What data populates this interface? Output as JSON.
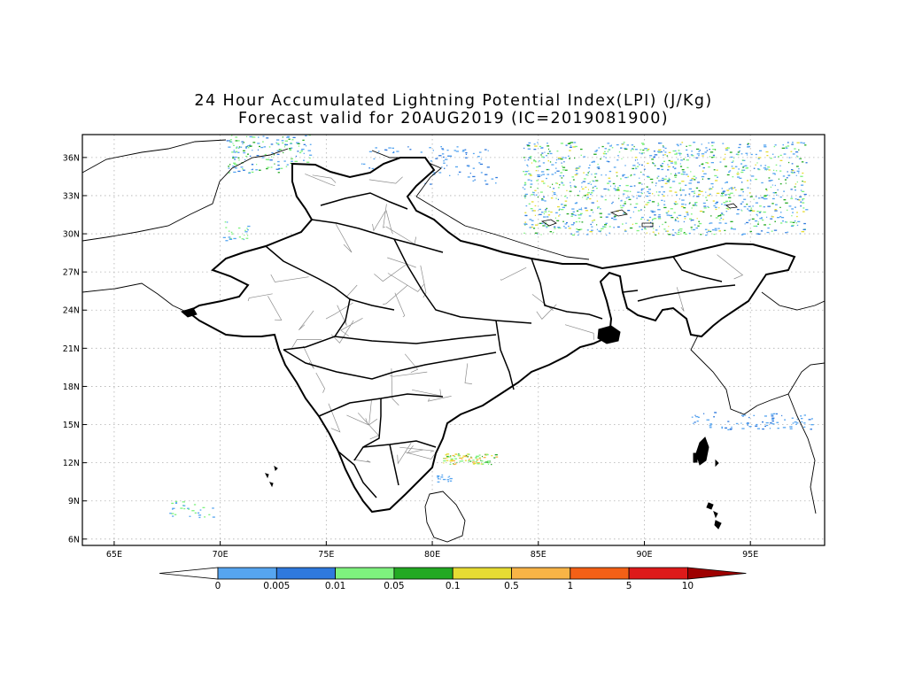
{
  "title": {
    "line1": "24 Hour Accumulated Lightning Potential Index(LPI) (J/Kg)",
    "line2": "Forecast valid for 20AUG2019 (IC=2019081900)"
  },
  "map": {
    "lon_range": [
      63.5,
      98.5
    ],
    "lat_range": [
      5.5,
      37.8
    ],
    "lat_ticks": [
      {
        "value": 36,
        "label": "36N"
      },
      {
        "value": 33,
        "label": "33N"
      },
      {
        "value": 30,
        "label": "30N"
      },
      {
        "value": 27,
        "label": "27N"
      },
      {
        "value": 24,
        "label": "24N"
      },
      {
        "value": 21,
        "label": "21N"
      },
      {
        "value": 18,
        "label": "18N"
      },
      {
        "value": 15,
        "label": "15N"
      },
      {
        "value": 12,
        "label": "12N"
      },
      {
        "value": 9,
        "label": "9N"
      },
      {
        "value": 6,
        "label": "6N"
      }
    ],
    "lon_ticks": [
      {
        "value": 65,
        "label": "65E"
      },
      {
        "value": 70,
        "label": "70E"
      },
      {
        "value": 75,
        "label": "75E"
      },
      {
        "value": 80,
        "label": "80E"
      },
      {
        "value": 85,
        "label": "85E"
      },
      {
        "value": 90,
        "label": "90E"
      },
      {
        "value": 95,
        "label": "95E"
      }
    ],
    "grid": "dotted",
    "colors": {
      "outline": "#000000",
      "district_lines": "#8c8c8c",
      "grid": "#b0b0b0"
    }
  },
  "colorbar": {
    "colors": [
      "#ffffff",
      "#56a5f0",
      "#2f79dd",
      "#7ef27e",
      "#23a923",
      "#e6dc33",
      "#f8b446",
      "#f46016",
      "#dd1a1a",
      "#9e0000"
    ],
    "labels": [
      "0",
      "0.005",
      "0.01",
      "0.05",
      "0.1",
      "0.5",
      "1",
      "5",
      "10"
    ]
  }
}
